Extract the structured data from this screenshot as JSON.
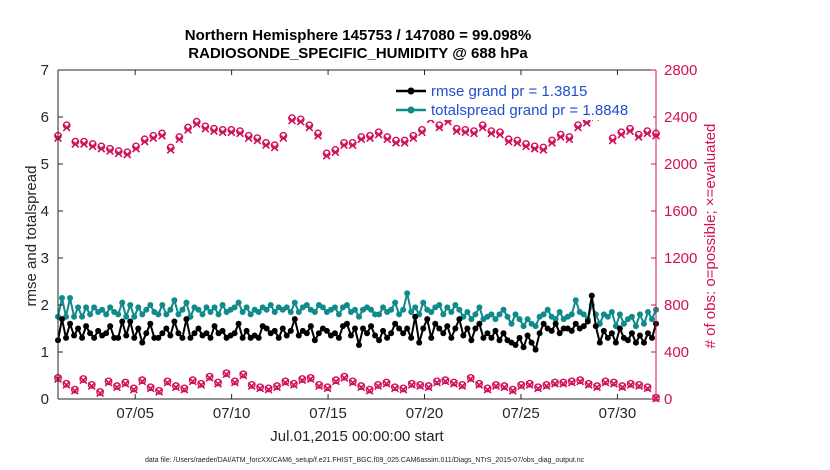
{
  "chart_data": {
    "type": "line",
    "title_line1": "Northern Hemisphere 145753 / 147080 = 99.098%",
    "title_line2": "RADIOSONDE_SPECIFIC_HUMIDITY @ 688 hPa",
    "xlabel": "Jul.01,2015 00:00:00 start",
    "ylabel_left": "rmse and totalspread",
    "ylabel_right": "# of obs: o=possible; ×=evaluated",
    "xlim": [
      1,
      32
    ],
    "ylim_left": [
      0,
      7
    ],
    "ylim_right": [
      0,
      2800
    ],
    "x_ticks": [
      5,
      10,
      15,
      20,
      25,
      30
    ],
    "x_tick_labels": [
      "07/05",
      "07/10",
      "07/15",
      "07/20",
      "07/25",
      "07/30"
    ],
    "y_ticks_left": [
      0,
      1,
      2,
      3,
      4,
      5,
      6,
      7
    ],
    "y_tick_labels_left": [
      "0",
      "1",
      "2",
      "3",
      "4",
      "5",
      "6",
      "7"
    ],
    "y_ticks_right": [
      0,
      400,
      800,
      1200,
      1600,
      2000,
      2400,
      2800
    ],
    "y_tick_labels_right": [
      "0",
      "400",
      "800",
      "1200",
      "1600",
      "2000",
      "2400",
      "2800"
    ],
    "legend": [
      {
        "label": "rmse grand pr = 1.3815",
        "color": "#000000"
      },
      {
        "label": "totalspread grand pr = 1.8848",
        "color": "#108a8a"
      }
    ],
    "colors": {
      "rmse": "#000000",
      "spread": "#108a8a",
      "obs": "#d1105a",
      "axis": "#262626"
    },
    "series": [
      {
        "name": "rmse",
        "values": [
          1.25,
          1.7,
          1.3,
          1.6,
          1.35,
          1.5,
          1.3,
          1.55,
          1.4,
          1.3,
          1.45,
          1.35,
          1.4,
          1.55,
          1.3,
          1.3,
          1.65,
          1.35,
          1.65,
          1.3,
          1.5,
          1.2,
          1.4,
          1.6,
          1.3,
          1.3,
          1.4,
          1.5,
          1.35,
          1.65,
          1.4,
          1.3,
          1.7,
          1.3,
          1.4,
          1.5,
          1.35,
          1.4,
          1.3,
          1.55,
          1.4,
          1.45,
          1.3,
          1.35,
          1.4,
          1.6,
          1.3,
          1.45,
          1.3,
          1.35,
          1.3,
          1.55,
          1.5,
          1.4,
          1.45,
          1.3,
          1.5,
          1.35,
          1.45,
          1.7,
          1.35,
          1.45,
          1.4,
          1.55,
          1.25,
          1.4,
          1.5,
          1.45,
          1.35,
          1.4,
          1.3,
          1.55,
          1.6,
          1.35,
          1.5,
          1.15,
          1.5,
          1.4,
          1.55,
          1.35,
          1.25,
          1.45,
          1.3,
          1.4,
          1.6,
          1.5,
          1.4,
          1.5,
          1.3,
          1.75,
          1.2,
          1.5,
          1.7,
          1.3,
          1.6,
          1.5,
          1.4,
          1.55,
          1.3,
          1.5,
          1.7,
          1.35,
          1.5,
          1.25,
          1.5,
          1.6,
          1.3,
          1.4,
          1.3,
          1.45,
          1.25,
          1.4,
          1.25,
          1.2,
          1.15,
          1.3,
          1.1,
          1.35,
          1.2,
          1.05,
          1.4,
          1.6,
          1.5,
          1.45,
          1.6,
          1.4,
          1.5,
          1.5,
          1.45,
          1.6,
          1.5,
          1.55,
          1.65,
          2.2,
          1.55,
          1.2,
          1.45,
          1.3,
          1.4,
          1.2,
          1.5,
          1.3,
          1.25,
          1.4,
          1.2,
          1.35,
          1.2,
          1.4,
          1.3,
          1.6
        ]
      },
      {
        "name": "totalspread",
        "values": [
          1.75,
          2.15,
          1.75,
          2.15,
          1.75,
          1.95,
          1.75,
          1.95,
          1.8,
          1.95,
          1.85,
          1.9,
          1.8,
          1.95,
          1.85,
          1.8,
          2.05,
          1.75,
          2.0,
          1.75,
          1.95,
          1.8,
          1.9,
          2.0,
          1.85,
          1.8,
          2.0,
          1.8,
          1.9,
          2.1,
          1.8,
          1.9,
          2.05,
          1.75,
          1.95,
          1.9,
          1.8,
          1.95,
          1.85,
          1.95,
          1.8,
          2.0,
          1.85,
          1.9,
          1.95,
          2.05,
          1.85,
          1.95,
          1.8,
          1.9,
          1.85,
          1.95,
          1.9,
          2.0,
          1.85,
          1.95,
          1.9,
          1.95,
          1.85,
          2.05,
          1.85,
          1.95,
          2.0,
          1.9,
          1.85,
          2.0,
          1.95,
          1.85,
          1.9,
          1.95,
          1.8,
          1.95,
          2.0,
          1.85,
          1.9,
          1.75,
          1.9,
          1.95,
          1.9,
          1.8,
          1.8,
          1.95,
          1.85,
          1.9,
          2.05,
          1.8,
          1.9,
          2.25,
          1.85,
          1.95,
          1.8,
          2.05,
          1.9,
          1.85,
          1.95,
          2.0,
          1.8,
          1.95,
          1.85,
          2.0,
          1.9,
          1.75,
          1.85,
          1.7,
          1.8,
          1.95,
          1.7,
          1.75,
          1.8,
          1.7,
          1.8,
          1.9,
          1.75,
          1.6,
          1.8,
          1.7,
          1.55,
          1.7,
          1.6,
          1.55,
          1.75,
          1.8,
          1.9,
          1.75,
          1.7,
          1.85,
          1.7,
          1.75,
          1.8,
          2.1,
          1.85,
          1.8,
          1.7,
          2.0,
          1.8,
          1.6,
          1.8,
          1.75,
          1.85,
          1.55,
          1.8,
          1.6,
          1.7,
          1.75,
          1.55,
          1.8,
          1.6,
          1.85,
          1.7,
          1.9
        ]
      },
      {
        "name": "possible_upper",
        "axis": "right",
        "values": [
          2240,
          2330,
          2190,
          2190,
          2170,
          2150,
          2130,
          2110,
          2100,
          2150,
          2210,
          2240,
          2260,
          2140,
          2230,
          2310,
          2360,
          2320,
          2300,
          2290,
          2290,
          2280,
          2240,
          2220,
          2180,
          2160,
          2240,
          2390,
          2380,
          2330,
          2260,
          2090,
          2120,
          2180,
          2180,
          2230,
          2240,
          2270,
          2230,
          2200,
          2200,
          2240,
          2290,
          2400,
          2330,
          2380,
          2300,
          2290,
          2280,
          2330,
          2280,
          2270,
          2210,
          2200,
          2170,
          2150,
          2140,
          2200,
          2250,
          2230,
          2330,
          2370,
          2420,
          2460,
          2220,
          2270,
          2300,
          2250,
          2280,
          2260
        ]
      },
      {
        "name": "evaluated_upper",
        "axis": "right",
        "values": [
          2220,
          2310,
          2170,
          2170,
          2150,
          2130,
          2110,
          2090,
          2080,
          2130,
          2190,
          2220,
          2240,
          2120,
          2210,
          2290,
          2340,
          2300,
          2280,
          2270,
          2270,
          2260,
          2220,
          2200,
          2160,
          2140,
          2220,
          2370,
          2360,
          2310,
          2240,
          2070,
          2100,
          2160,
          2160,
          2210,
          2220,
          2250,
          2210,
          2180,
          2180,
          2220,
          2270,
          2380,
          2310,
          2360,
          2280,
          2270,
          2260,
          2310,
          2260,
          2250,
          2190,
          2180,
          2150,
          2130,
          2120,
          2180,
          2230,
          2210,
          2310,
          2350,
          2400,
          2440,
          2200,
          2250,
          2280,
          2230,
          2260,
          2240
        ]
      },
      {
        "name": "possible_lower",
        "axis": "right",
        "values": [
          180,
          130,
          80,
          170,
          120,
          60,
          150,
          110,
          140,
          90,
          160,
          100,
          70,
          150,
          110,
          90,
          160,
          130,
          190,
          140,
          220,
          150,
          210,
          120,
          100,
          90,
          110,
          150,
          130,
          170,
          180,
          120,
          100,
          160,
          190,
          150,
          110,
          80,
          120,
          140,
          100,
          90,
          130,
          120,
          110,
          150,
          160,
          140,
          120,
          180,
          130,
          90,
          120,
          110,
          80,
          120,
          130,
          100,
          120,
          140,
          140,
          150,
          160,
          130,
          110,
          150,
          140,
          110,
          130,
          120,
          100,
          10
        ]
      },
      {
        "name": "evaluated_lower",
        "axis": "right",
        "values": [
          170,
          120,
          70,
          160,
          110,
          50,
          140,
          100,
          130,
          80,
          150,
          90,
          60,
          140,
          100,
          80,
          150,
          120,
          180,
          130,
          210,
          140,
          200,
          110,
          90,
          80,
          100,
          140,
          120,
          160,
          170,
          110,
          90,
          150,
          180,
          140,
          100,
          70,
          110,
          130,
          90,
          80,
          120,
          110,
          100,
          140,
          150,
          130,
          110,
          170,
          120,
          80,
          110,
          100,
          70,
          110,
          120,
          90,
          110,
          130,
          130,
          140,
          150,
          120,
          100,
          140,
          130,
          100,
          120,
          110,
          90,
          5
        ]
      }
    ]
  },
  "footnote": "data file: /Users/raeder/DAI/ATM_forcXX/CAM6_setup/f.e21.FHIST_BGC.f09_025.CAM6assim.011/Diags_NTrS_2015-07/obs_diag_output.nc"
}
